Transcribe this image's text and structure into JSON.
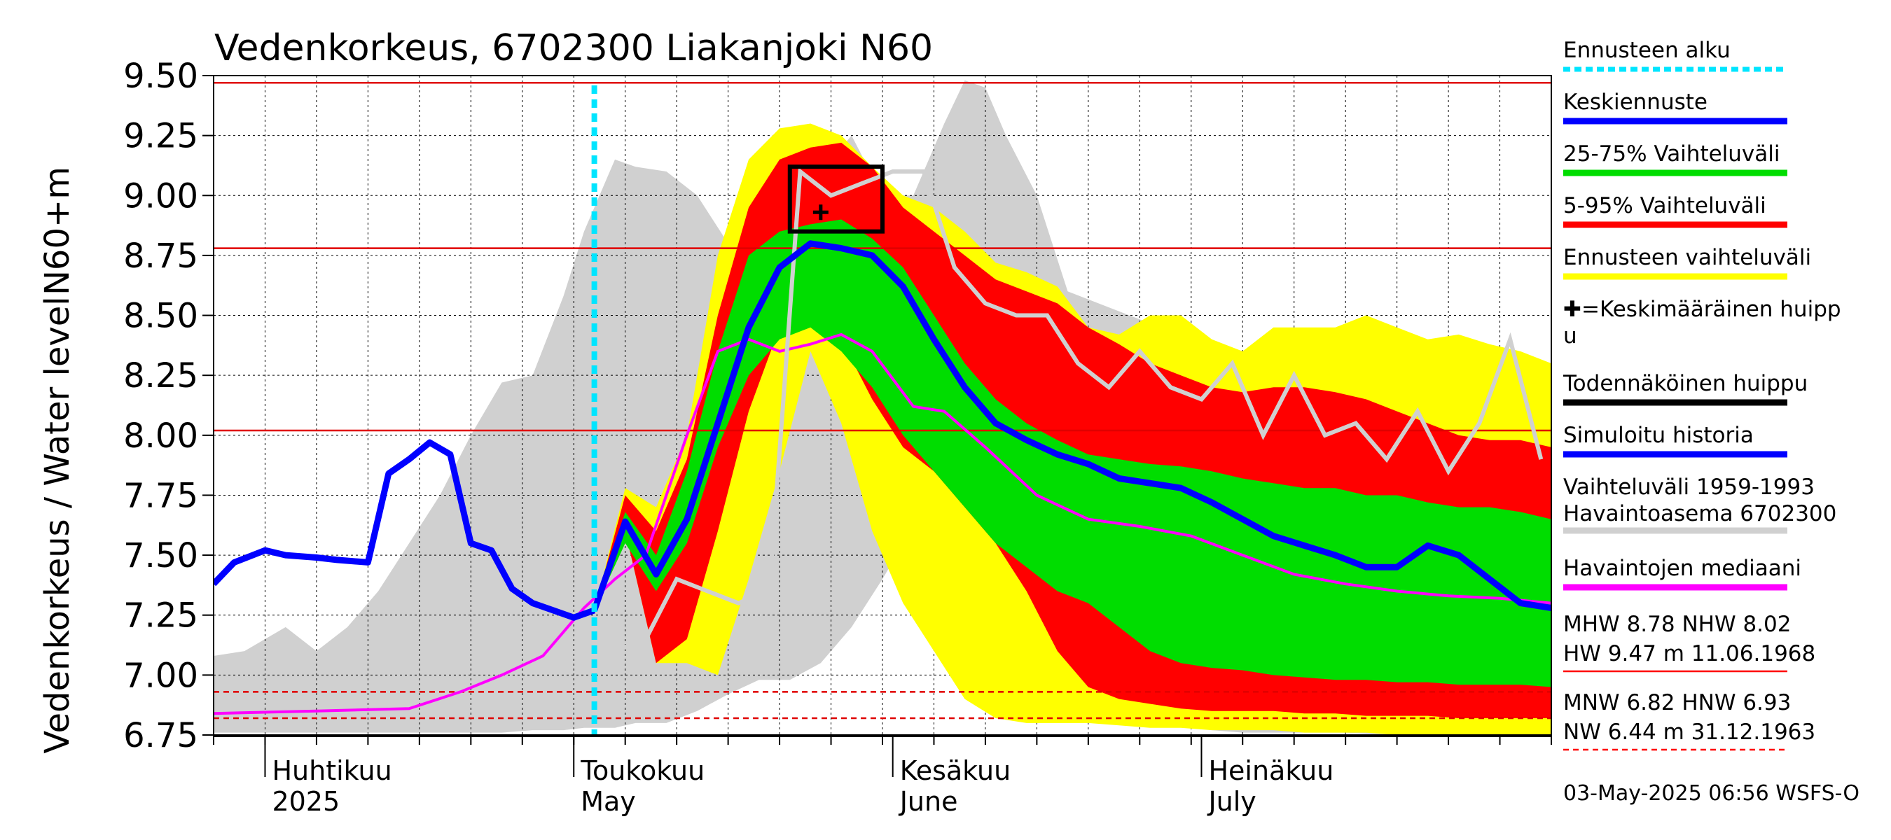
{
  "chart_data": {
    "type": "area",
    "title": "Vedenkorkeus, 6702300 Liakanjoki N60",
    "ylabel_top": "N60+m",
    "ylabel_main": "Vedenkorkeus / Water level",
    "ylim": [
      6.75,
      9.5
    ],
    "y_ticks": [
      "9.50",
      "9.25",
      "9.00",
      "8.75",
      "8.50",
      "8.25",
      "8.00",
      "7.75",
      "7.50",
      "7.25",
      "7.00",
      "6.75"
    ],
    "x_start": "2025-03-27",
    "x_end": "2025-08-04",
    "x_month_labels": [
      {
        "date": "2025-04-01",
        "fi": "Huhtikuu",
        "en": "2025"
      },
      {
        "date": "2025-05-01",
        "fi": "Toukokuu",
        "en": "May"
      },
      {
        "date": "2025-06-01",
        "fi": "Kesäkuu",
        "en": "June"
      },
      {
        "date": "2025-07-01",
        "fi": "Heinäkuu",
        "en": "July"
      }
    ],
    "forecast_start": "2025-05-03",
    "reference_lines": [
      {
        "name": "HW",
        "value": 9.47,
        "style": "solid"
      },
      {
        "name": "MHW",
        "value": 8.78,
        "style": "solid"
      },
      {
        "name": "NHW",
        "value": 8.02,
        "style": "solid"
      },
      {
        "name": "HNW",
        "value": 6.93,
        "style": "dashed"
      },
      {
        "name": "MNW",
        "value": 6.82,
        "style": "dashed"
      }
    ],
    "historical_range": {
      "x": [
        "2025-03-27",
        "2025-03-30",
        "2025-04-03",
        "2025-04-06",
        "2025-04-09",
        "2025-04-12",
        "2025-04-15",
        "2025-04-18",
        "2025-04-21",
        "2025-04-24",
        "2025-04-27",
        "2025-04-30",
        "2025-05-02",
        "2025-05-05",
        "2025-05-07",
        "2025-05-10",
        "2025-05-13",
        "2025-05-16",
        "2025-05-19",
        "2025-05-22",
        "2025-05-25",
        "2025-05-28",
        "2025-05-31",
        "2025-06-03",
        "2025-06-06",
        "2025-06-08",
        "2025-06-10",
        "2025-06-12",
        "2025-06-15",
        "2025-06-18",
        "2025-06-21",
        "2025-06-24",
        "2025-06-27",
        "2025-06-30",
        "2025-07-02",
        "2025-07-05",
        "2025-07-10",
        "2025-07-15",
        "2025-07-20",
        "2025-07-25",
        "2025-07-30",
        "2025-08-04"
      ],
      "max": [
        7.08,
        7.1,
        7.2,
        7.1,
        7.2,
        7.35,
        7.55,
        7.75,
        8.0,
        8.22,
        8.25,
        8.58,
        8.85,
        9.15,
        9.12,
        9.1,
        9.0,
        8.8,
        8.75,
        8.9,
        9.1,
        9.25,
        9.0,
        9.0,
        9.3,
        9.48,
        9.45,
        9.25,
        9.0,
        8.6,
        8.55,
        8.5,
        8.45,
        8.4,
        8.2,
        8.1,
        8.0,
        7.9,
        7.85,
        7.8,
        7.75,
        7.7
      ],
      "min": [
        6.76,
        6.76,
        6.76,
        6.76,
        6.76,
        6.76,
        6.76,
        6.76,
        6.76,
        6.76,
        6.77,
        6.77,
        6.78,
        6.78,
        6.8,
        6.8,
        6.85,
        6.92,
        6.98,
        6.98,
        7.05,
        7.2,
        7.4,
        7.62,
        7.65,
        7.5,
        7.4,
        7.2,
        7.05,
        6.9,
        6.85,
        6.8,
        6.79,
        6.78,
        6.77,
        6.76,
        6.76,
        6.76,
        6.75,
        6.75,
        6.75,
        6.75
      ]
    },
    "forecast_x": [
      "2025-05-03",
      "2025-05-06",
      "2025-05-09",
      "2025-05-12",
      "2025-05-15",
      "2025-05-18",
      "2025-05-21",
      "2025-05-24",
      "2025-05-27",
      "2025-05-30",
      "2025-06-02",
      "2025-06-05",
      "2025-06-08",
      "2025-06-11",
      "2025-06-14",
      "2025-06-17",
      "2025-06-20",
      "2025-06-23",
      "2025-06-26",
      "2025-06-29",
      "2025-07-02",
      "2025-07-05",
      "2025-07-08",
      "2025-07-11",
      "2025-07-14",
      "2025-07-17",
      "2025-07-20",
      "2025-07-23",
      "2025-07-26",
      "2025-07-29",
      "2025-08-01",
      "2025-08-04"
    ],
    "series": [
      {
        "name": "Ennusteen vaihteluväli",
        "color": "#ffff00",
        "upper": [
          7.27,
          7.78,
          7.7,
          8.0,
          8.75,
          9.15,
          9.28,
          9.3,
          9.25,
          9.12,
          9.0,
          8.95,
          8.85,
          8.72,
          8.68,
          8.62,
          8.45,
          8.42,
          8.5,
          8.5,
          8.4,
          8.35,
          8.45,
          8.45,
          8.45,
          8.5,
          8.45,
          8.4,
          8.42,
          8.38,
          8.35,
          8.3
        ],
        "lower": [
          7.27,
          7.6,
          7.05,
          7.05,
          7.0,
          7.4,
          7.85,
          8.35,
          8.05,
          7.6,
          7.3,
          7.1,
          6.9,
          6.82,
          6.8,
          6.8,
          6.8,
          6.79,
          6.78,
          6.78,
          6.77,
          6.77,
          6.77,
          6.76,
          6.76,
          6.76,
          6.75,
          6.75,
          6.75,
          6.75,
          6.75,
          6.75
        ]
      },
      {
        "name": "5-95% Vaihteluväli",
        "color": "#ff0000",
        "upper": [
          7.27,
          7.75,
          7.6,
          7.9,
          8.5,
          8.95,
          9.15,
          9.2,
          9.22,
          9.12,
          8.95,
          8.85,
          8.75,
          8.65,
          8.6,
          8.55,
          8.45,
          8.38,
          8.3,
          8.25,
          8.2,
          8.18,
          8.2,
          8.2,
          8.18,
          8.15,
          8.1,
          8.05,
          8.0,
          7.98,
          7.98,
          7.95
        ],
        "lower": [
          7.27,
          7.6,
          7.05,
          7.15,
          7.6,
          8.1,
          8.45,
          8.5,
          8.4,
          8.15,
          7.95,
          7.85,
          7.7,
          7.55,
          7.35,
          7.1,
          6.95,
          6.9,
          6.88,
          6.86,
          6.85,
          6.85,
          6.85,
          6.84,
          6.84,
          6.83,
          6.83,
          6.83,
          6.82,
          6.82,
          6.82,
          6.82
        ]
      },
      {
        "name": "25-75% Vaihteluväli",
        "color": "#00dd00",
        "upper": [
          7.27,
          7.68,
          7.5,
          7.85,
          8.35,
          8.75,
          8.85,
          8.88,
          8.9,
          8.82,
          8.7,
          8.5,
          8.3,
          8.15,
          8.05,
          7.98,
          7.92,
          7.9,
          7.88,
          7.87,
          7.85,
          7.82,
          7.8,
          7.78,
          7.78,
          7.75,
          7.75,
          7.72,
          7.7,
          7.7,
          7.68,
          7.65
        ],
        "lower": [
          7.27,
          7.55,
          7.35,
          7.55,
          7.95,
          8.25,
          8.4,
          8.45,
          8.35,
          8.2,
          8.0,
          7.85,
          7.7,
          7.55,
          7.45,
          7.35,
          7.3,
          7.2,
          7.1,
          7.05,
          7.03,
          7.02,
          7.0,
          6.99,
          6.98,
          6.98,
          6.97,
          6.97,
          6.96,
          6.96,
          6.96,
          6.95
        ]
      },
      {
        "name": "Keskiennuste",
        "color": "#0000ff",
        "values": [
          7.27,
          7.64,
          7.42,
          7.65,
          8.05,
          8.45,
          8.7,
          8.8,
          8.78,
          8.75,
          8.62,
          8.4,
          8.2,
          8.05,
          7.98,
          7.92,
          7.88,
          7.82,
          7.8,
          7.78,
          7.72,
          7.65,
          7.58,
          7.54,
          7.5,
          7.45,
          7.45,
          7.54,
          7.5,
          7.4,
          7.3,
          7.28
        ]
      }
    ],
    "simulated_history": {
      "name": "Simuloitu historia",
      "color": "#0000ff",
      "x": [
        "2025-03-27",
        "2025-03-29",
        "2025-04-01",
        "2025-04-03",
        "2025-04-06",
        "2025-04-08",
        "2025-04-11",
        "2025-04-13",
        "2025-04-15",
        "2025-04-17",
        "2025-04-19",
        "2025-04-21",
        "2025-04-23",
        "2025-04-25",
        "2025-04-27",
        "2025-04-29",
        "2025-05-01",
        "2025-05-03"
      ],
      "values": [
        7.38,
        7.47,
        7.52,
        7.5,
        7.49,
        7.48,
        7.47,
        7.84,
        7.9,
        7.97,
        7.92,
        7.55,
        7.52,
        7.36,
        7.3,
        7.27,
        7.24,
        7.27
      ]
    },
    "observed_median": {
      "name": "Havaintojen mediaani",
      "color": "#ff00ff",
      "x": [
        "2025-03-27",
        "2025-04-06",
        "2025-04-15",
        "2025-04-20",
        "2025-04-24",
        "2025-04-28",
        "2025-05-02",
        "2025-05-05",
        "2025-05-08",
        "2025-05-12",
        "2025-05-15",
        "2025-05-18",
        "2025-05-21",
        "2025-05-24",
        "2025-05-27",
        "2025-05-30",
        "2025-06-03",
        "2025-06-06",
        "2025-06-10",
        "2025-06-15",
        "2025-06-20",
        "2025-06-25",
        "2025-06-30",
        "2025-07-05",
        "2025-07-10",
        "2025-07-15",
        "2025-07-20",
        "2025-07-25",
        "2025-07-30",
        "2025-08-04"
      ],
      "values": [
        6.84,
        6.85,
        6.86,
        6.93,
        7.0,
        7.08,
        7.28,
        7.4,
        7.5,
        8.0,
        8.35,
        8.4,
        8.35,
        8.38,
        8.42,
        8.35,
        8.12,
        8.1,
        7.95,
        7.75,
        7.65,
        7.62,
        7.58,
        7.5,
        7.42,
        7.38,
        7.35,
        7.33,
        7.32,
        7.3
      ]
    },
    "example_year": {
      "name": "Vaihteluväli 1959-1993 Havaintoasema 6702300",
      "color": "#d0d0d0",
      "x": [
        "2025-05-05",
        "2025-05-08",
        "2025-05-11",
        "2025-05-14",
        "2025-05-17",
        "2025-05-20",
        "2025-05-23",
        "2025-05-26",
        "2025-05-29",
        "2025-06-01",
        "2025-06-04",
        "2025-06-07",
        "2025-06-10",
        "2025-06-13",
        "2025-06-16",
        "2025-06-19",
        "2025-06-22",
        "2025-06-25",
        "2025-06-28",
        "2025-07-01",
        "2025-07-04",
        "2025-07-07",
        "2025-07-10",
        "2025-07-13",
        "2025-07-16",
        "2025-07-19",
        "2025-07-22",
        "2025-07-25",
        "2025-07-28",
        "2025-07-31",
        "2025-08-03"
      ],
      "values": [
        7.1,
        7.15,
        7.4,
        7.35,
        7.3,
        7.35,
        9.1,
        9.0,
        9.05,
        9.1,
        9.1,
        8.7,
        8.55,
        8.5,
        8.5,
        8.3,
        8.2,
        8.35,
        8.2,
        8.15,
        8.3,
        8.0,
        8.25,
        8.0,
        8.05,
        7.9,
        8.1,
        7.85,
        8.05,
        8.4,
        7.9
      ]
    },
    "mean_peak": {
      "name": "Keskimääräinen huippu",
      "date": "2025-05-25",
      "value": 8.93
    },
    "probable_peak_box": {
      "name": "Todennäköinen huippu",
      "date_start": "2025-05-22",
      "date_end": "2025-05-31",
      "value_min": 8.85,
      "value_max": 9.12
    }
  },
  "legend": {
    "items": [
      {
        "label": "Ennusteen alku",
        "color": "#00e5ff",
        "style": "dashed"
      },
      {
        "label": "Keskiennuste",
        "color": "#0000ff",
        "style": "solid"
      },
      {
        "label": "25-75% Vaihteluväli",
        "color": "#00dd00",
        "style": "solid"
      },
      {
        "label": "5-95% Vaihteluväli",
        "color": "#ff0000",
        "style": "solid"
      },
      {
        "label": "Ennusteen vaihteluväli",
        "color": "#ffff00",
        "style": "solid"
      },
      {
        "label": "✚=Keskimääräinen huipp",
        "label2": "u",
        "color": "",
        "style": "none"
      },
      {
        "label": "Todennäköinen huippu",
        "color": "#000000",
        "style": "solid"
      },
      {
        "label": "Simuloitu historia",
        "color": "#0000ff",
        "style": "solid"
      },
      {
        "label": "Vaihteluväli 1959-1993",
        "label2": " Havaintoasema 6702300",
        "color": "#d0d0d0",
        "style": "solid"
      },
      {
        "label": "Havaintojen mediaani",
        "color": "#ff00ff",
        "style": "solid"
      }
    ],
    "stats": [
      {
        "line1": "MHW   8.78 NHW   8.02",
        "line2": "HW   9.47 m 11.06.1968",
        "color": "#ff0000",
        "style": "solid"
      },
      {
        "line1": "MNW   6.82 HNW   6.93",
        "line2": "NW   6.44 m 31.12.1963",
        "color": "#ff0000",
        "style": "dashed"
      }
    ]
  },
  "footer": "03-May-2025 06:56 WSFS-O"
}
